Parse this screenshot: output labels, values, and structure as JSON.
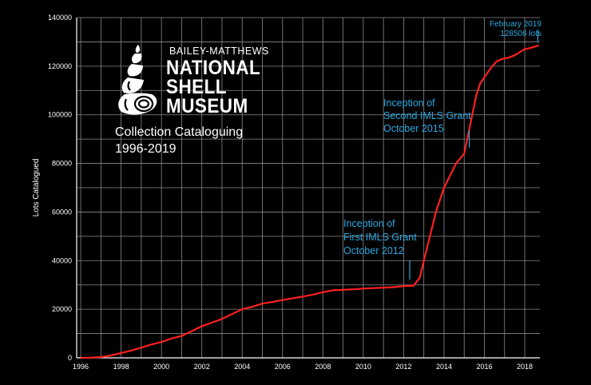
{
  "logo": {
    "line1": "BAILEY-MATTHEWS",
    "line2": "NATIONAL",
    "line3": "SHELL",
    "line4": "MUSEUM",
    "subtitle1": "Collection Cataloguing",
    "subtitle2": "1996-2019",
    "icon": "shell-icon"
  },
  "colors": {
    "background": "#000000",
    "line": "#ff2020",
    "grid": "#8a8a8a",
    "annotation": "#29a8e0"
  },
  "chart_data": {
    "type": "line",
    "ylabel": "Lots Catalogued",
    "xlabel": "",
    "xlim": [
      1995.8,
      2018.75
    ],
    "ylim": [
      0,
      140000
    ],
    "grid": true,
    "x_ticks": [
      "1996",
      "1998",
      "2000",
      "2002",
      "2004",
      "2006",
      "2008",
      "2010",
      "2012",
      "2014",
      "2016",
      "2018"
    ],
    "y_ticks": [
      "0",
      "20000",
      "40000",
      "60000",
      "80000",
      "100000",
      "120000",
      "140000"
    ],
    "series": [
      {
        "x": [
          1996.0,
          1996.5,
          1997.0,
          1997.5,
          1998.0,
          1998.5,
          1999.0,
          1999.5,
          2000.0,
          2000.5,
          2001.0,
          2001.5,
          2002.0,
          2002.5,
          2003.0,
          2003.5,
          2004.0,
          2004.5,
          2005.0,
          2005.5,
          2006.0,
          2006.5,
          2007.0,
          2007.5,
          2008.0,
          2008.5,
          2009.0,
          2009.5,
          2010.0,
          2010.5,
          2011.0,
          2011.5,
          2012.0,
          2012.5,
          2012.8,
          2013.0,
          2013.3,
          2013.6,
          2014.0,
          2014.3,
          2014.6,
          2015.0,
          2015.2,
          2015.4,
          2015.6,
          2015.8,
          2016.0,
          2016.3,
          2016.6,
          2016.9,
          2017.2,
          2017.5,
          2017.8,
          2018.0,
          2018.3,
          2018.6,
          2018.7
        ],
        "y": [
          0,
          100,
          300,
          1000,
          2000,
          3000,
          4200,
          5500,
          6500,
          8000,
          9000,
          11000,
          13000,
          14500,
          16000,
          18000,
          20000,
          21000,
          22300,
          23000,
          23800,
          24500,
          25200,
          26000,
          27000,
          27800,
          28000,
          28200,
          28500,
          28700,
          28900,
          29100,
          29500,
          29700,
          33000,
          40000,
          50000,
          60000,
          70000,
          75000,
          80000,
          84000,
          92000,
          100000,
          108000,
          113000,
          115500,
          119000,
          122000,
          123000,
          123500,
          124500,
          126000,
          127000,
          127500,
          128300,
          128506
        ]
      }
    ],
    "annotations": [
      {
        "lines": [
          "Inception of",
          "First IMLS Grant",
          "October 2012"
        ],
        "x": 2012.3,
        "y": 29600
      },
      {
        "lines": [
          "Inception of",
          "Second IMLS Grant",
          "October 2015"
        ],
        "x": 2015.25,
        "y": 84500
      },
      {
        "lines": [
          "February 2019",
          "128506 lots"
        ],
        "x": 2018.65,
        "y": 128300
      }
    ]
  }
}
